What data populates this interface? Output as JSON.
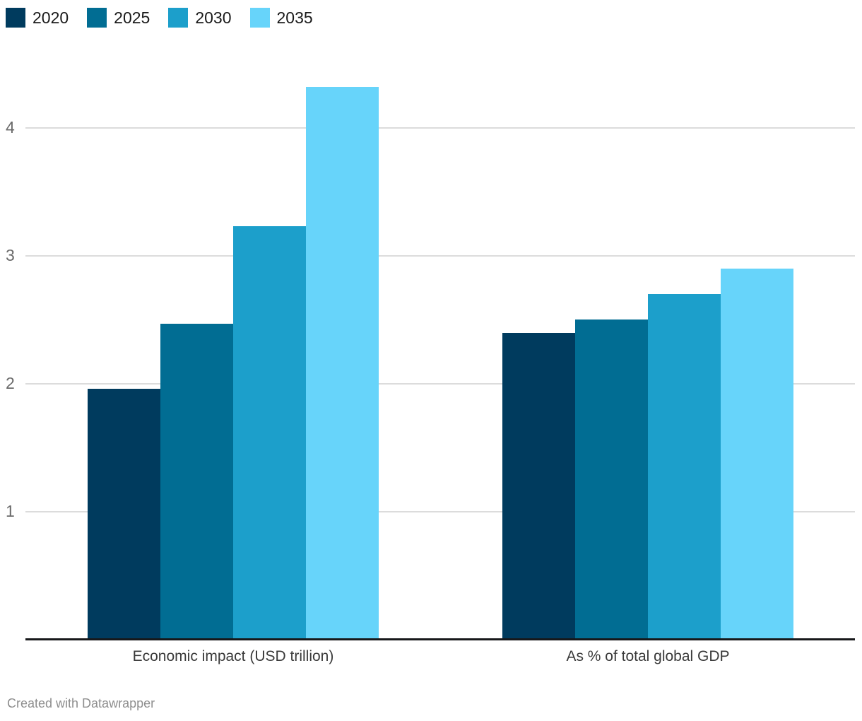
{
  "chart_data": {
    "type": "bar",
    "title": "",
    "xlabel": "",
    "ylabel": "",
    "categories": [
      "Economic impact (USD trillion)",
      "As % of total global GDP"
    ],
    "series": [
      {
        "name": "2020",
        "color": "#003b5e",
        "values": [
          1.96,
          2.4
        ]
      },
      {
        "name": "2025",
        "color": "#016d93",
        "values": [
          2.47,
          2.5
        ]
      },
      {
        "name": "2030",
        "color": "#1c9fcb",
        "values": [
          3.23,
          2.7
        ]
      },
      {
        "name": "2035",
        "color": "#67d4fa",
        "values": [
          4.32,
          2.9
        ]
      }
    ],
    "yticks": [
      1,
      2,
      3,
      4
    ],
    "ylim": [
      0,
      4.67
    ],
    "grid": true,
    "legend_position": "top-left"
  },
  "footer": {
    "credit": "Created with Datawrapper"
  },
  "colors": {
    "background": "#ffffff",
    "gridline": "#dcdcdc",
    "axis": "#17181a",
    "tick_label": "#6b6b6b",
    "legend_label": "#1a1a1a",
    "category_label": "#3a3a3a",
    "credit": "#8e8e8e"
  }
}
